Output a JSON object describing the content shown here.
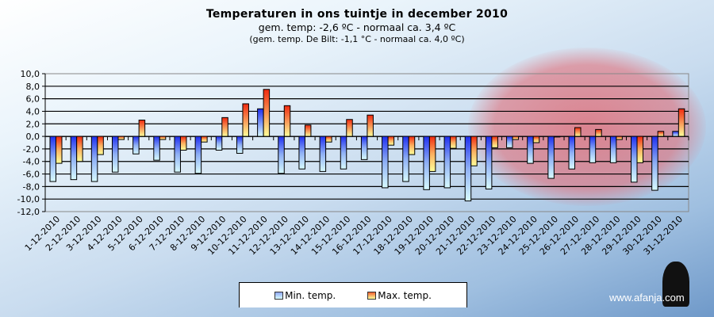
{
  "title": "Temperaturen  in ons tuintje in december 2010",
  "subtitle": "gem.  temp:  -2,6 ºC  -  normaal  ca.  3,4 ºC",
  "subtitle2": "(gem. temp. De Bilt: -1,1 °C - normaal ca. 4,0 ºC)",
  "watermark": "www.afanja.com",
  "chart_data": {
    "type": "bar",
    "title": "Temperaturen  in ons tuintje in december 2010",
    "ylim": [
      -12,
      10
    ],
    "ytick_step": 2,
    "yticks": [
      "10,0",
      "8,0",
      "6,0",
      "4,0",
      "2,0",
      "0,0",
      "-2,0",
      "-4,0",
      "-6,0",
      "-8,0",
      "-10,0",
      "-12,0"
    ],
    "grid": true,
    "legend_position": "bottom",
    "categories": [
      "1-12-2010",
      "2-12-2010",
      "3-12-2010",
      "4-12-2010",
      "5-12-2010",
      "6-12-2010",
      "7-12-2010",
      "8-12-2010",
      "9-12-2010",
      "10-12-2010",
      "11-12-2010",
      "12-12-2010",
      "13-12-2010",
      "14-12-2010",
      "15-12-2010",
      "16-12-2010",
      "17-12-2010",
      "18-12-2010",
      "19-12-2010",
      "20-12-2010",
      "21-12-2010",
      "22-12-2010",
      "23-12-2010",
      "24-12-2010",
      "25-12-2010",
      "26-12-2010",
      "27-12-2010",
      "28-12-2010",
      "29-12-2010",
      "30-12-2010",
      "31-12-2010"
    ],
    "series": [
      {
        "name": "Min. temp.",
        "color": "#2a3ff0",
        "values": [
          -7.2,
          -6.9,
          -7.2,
          -5.7,
          -2.8,
          -3.8,
          -5.7,
          -5.9,
          -2.2,
          -2.7,
          4.4,
          -5.9,
          -5.2,
          -5.6,
          -5.2,
          -3.7,
          -8.2,
          -7.2,
          -8.5,
          -8.2,
          -10.3,
          -8.4,
          -1.8,
          -4.3,
          -6.7,
          -5.2,
          -4.2,
          -4.2,
          -7.3,
          -8.6,
          0.8
        ]
      },
      {
        "name": "Max. temp.",
        "color": "#f02a10",
        "values": [
          -4.3,
          -4.0,
          -2.9,
          -0.5,
          2.6,
          -0.5,
          -2.2,
          -0.9,
          3.0,
          5.2,
          7.5,
          4.9,
          1.8,
          -0.9,
          2.7,
          3.4,
          -1.4,
          -2.9,
          -5.6,
          -1.9,
          -4.7,
          -1.8,
          -0.5,
          -1.0,
          -0.1,
          1.4,
          1.1,
          -0.5,
          -4.2,
          0.8,
          4.4
        ]
      }
    ]
  }
}
